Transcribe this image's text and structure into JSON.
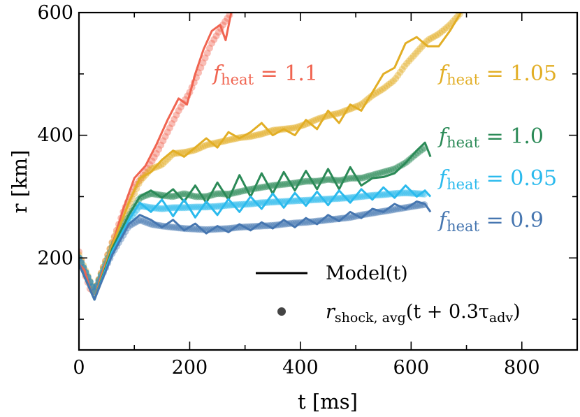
{
  "chart_data": {
    "type": "line",
    "xlabel": "t [ms]",
    "ylabel": "r [km]",
    "xlim": [
      0,
      900
    ],
    "ylim": [
      50,
      600
    ],
    "xticks": [
      0,
      200,
      400,
      600,
      800
    ],
    "yticks": [
      200,
      400,
      600
    ],
    "grid": false,
    "legend_position": "bottom-right",
    "legend": [
      {
        "label": "Model(t)",
        "style": "line"
      },
      {
        "label": "r_shock,avg(t + 0.3τ_adv)",
        "style": "dots"
      }
    ],
    "series": [
      {
        "name": "f_heat = 1.1",
        "color": "#f06450",
        "model": {
          "x": [
            0,
            10,
            20,
            28,
            40,
            60,
            80,
            100,
            120,
            140,
            160,
            180,
            195,
            210,
            225,
            240,
            255,
            265,
            275
          ],
          "y": [
            190,
            180,
            150,
            132,
            170,
            220,
            280,
            330,
            350,
            385,
            425,
            460,
            450,
            500,
            540,
            570,
            580,
            555,
            600
          ]
        },
        "dots": {
          "x": [
            0,
            10,
            20,
            28,
            40,
            60,
            80,
            100,
            120,
            140,
            160,
            180,
            200,
            220,
            240,
            260,
            275
          ],
          "y": [
            210,
            175,
            150,
            145,
            175,
            225,
            275,
            315,
            340,
            370,
            405,
            440,
            470,
            510,
            550,
            580,
            600
          ]
        }
      },
      {
        "name": "f_heat = 1.05",
        "color": "#e2ae25",
        "model": {
          "x": [
            0,
            28,
            60,
            90,
            110,
            130,
            150,
            170,
            190,
            210,
            230,
            250,
            270,
            290,
            310,
            330,
            350,
            370,
            390,
            410,
            430,
            450,
            470,
            490,
            510,
            530,
            550,
            570,
            590,
            610,
            630,
            650,
            670,
            690
          ],
          "y": [
            190,
            132,
            220,
            290,
            330,
            340,
            360,
            375,
            365,
            380,
            395,
            380,
            405,
            395,
            405,
            420,
            400,
            410,
            400,
            425,
            410,
            440,
            420,
            450,
            440,
            470,
            500,
            510,
            550,
            560,
            545,
            545,
            570,
            600
          ]
        },
        "dots": {
          "x": [
            0,
            28,
            60,
            90,
            110,
            130,
            150,
            170,
            190,
            210,
            230,
            250,
            270,
            290,
            310,
            330,
            350,
            370,
            390,
            410,
            430,
            450,
            470,
            490,
            510,
            530,
            550,
            570,
            590,
            610,
            630,
            650,
            670,
            690
          ],
          "y": [
            205,
            145,
            225,
            285,
            325,
            345,
            352,
            370,
            372,
            376,
            384,
            388,
            392,
            396,
            398,
            402,
            408,
            410,
            412,
            418,
            426,
            432,
            436,
            443,
            450,
            465,
            476,
            490,
            515,
            535,
            555,
            565,
            580,
            600
          ]
        }
      },
      {
        "name": "f_heat = 1.0",
        "color": "#2b8a57",
        "model": {
          "x": [
            0,
            28,
            60,
            90,
            110,
            130,
            150,
            170,
            190,
            210,
            230,
            250,
            270,
            290,
            310,
            330,
            350,
            370,
            390,
            410,
            430,
            450,
            470,
            490,
            510,
            530,
            550,
            570,
            590,
            610,
            625,
            635
          ],
          "y": [
            190,
            132,
            215,
            270,
            300,
            310,
            298,
            312,
            292,
            318,
            290,
            323,
            295,
            335,
            300,
            338,
            305,
            340,
            310,
            342,
            312,
            345,
            312,
            348,
            318,
            330,
            332,
            338,
            355,
            375,
            388,
            365
          ]
        },
        "dots": {
          "x": [
            0,
            28,
            60,
            90,
            110,
            130,
            150,
            170,
            190,
            210,
            230,
            250,
            270,
            290,
            310,
            330,
            350,
            370,
            390,
            410,
            430,
            450,
            470,
            490,
            510,
            530,
            550,
            570,
            590,
            610,
            625
          ],
          "y": [
            200,
            145,
            218,
            268,
            298,
            305,
            302,
            300,
            305,
            300,
            300,
            305,
            304,
            308,
            312,
            315,
            318,
            320,
            322,
            325,
            325,
            328,
            326,
            330,
            330,
            335,
            340,
            345,
            355,
            370,
            380
          ]
        }
      },
      {
        "name": "f_heat = 0.95",
        "color": "#2bbaed",
        "model": {
          "x": [
            0,
            28,
            60,
            90,
            110,
            130,
            150,
            170,
            190,
            210,
            230,
            250,
            270,
            290,
            310,
            330,
            350,
            370,
            390,
            410,
            430,
            450,
            470,
            490,
            510,
            530,
            550,
            570,
            590,
            610,
            625,
            635
          ],
          "y": [
            190,
            132,
            210,
            262,
            290,
            275,
            295,
            268,
            295,
            266,
            292,
            270,
            296,
            275,
            300,
            280,
            305,
            282,
            306,
            285,
            308,
            286,
            310,
            290,
            312,
            295,
            315,
            298,
            318,
            300,
            310,
            300
          ]
        },
        "dots": {
          "x": [
            0,
            28,
            60,
            90,
            110,
            130,
            150,
            170,
            190,
            210,
            230,
            250,
            270,
            290,
            310,
            330,
            350,
            370,
            390,
            410,
            430,
            450,
            470,
            490,
            510,
            530,
            550,
            570,
            590,
            610,
            625
          ],
          "y": [
            200,
            145,
            212,
            262,
            285,
            282,
            280,
            282,
            282,
            283,
            283,
            284,
            286,
            287,
            288,
            290,
            291,
            292,
            293,
            294,
            295,
            296,
            297,
            298,
            300,
            302,
            303,
            305,
            306,
            305,
            304
          ]
        }
      },
      {
        "name": "f_heat = 0.9",
        "color": "#4676b0",
        "model": {
          "x": [
            0,
            28,
            60,
            90,
            110,
            130,
            150,
            170,
            190,
            210,
            230,
            250,
            270,
            290,
            310,
            330,
            350,
            370,
            390,
            410,
            430,
            450,
            470,
            490,
            510,
            530,
            550,
            570,
            590,
            610,
            625,
            635
          ],
          "y": [
            190,
            132,
            205,
            255,
            270,
            262,
            250,
            262,
            245,
            256,
            240,
            252,
            242,
            255,
            245,
            258,
            248,
            262,
            250,
            265,
            255,
            270,
            260,
            275,
            265,
            280,
            275,
            288,
            280,
            292,
            288,
            275
          ]
        },
        "dots": {
          "x": [
            0,
            28,
            60,
            90,
            110,
            130,
            150,
            170,
            190,
            210,
            230,
            250,
            270,
            290,
            310,
            330,
            350,
            370,
            390,
            410,
            430,
            450,
            470,
            490,
            510,
            530,
            550,
            570,
            590,
            610,
            625
          ],
          "y": [
            200,
            145,
            207,
            252,
            262,
            255,
            252,
            250,
            248,
            247,
            246,
            247,
            248,
            250,
            251,
            252,
            253,
            255,
            257,
            258,
            260,
            262,
            264,
            266,
            270,
            273,
            276,
            279,
            282,
            285,
            287
          ]
        }
      }
    ]
  },
  "labels": [
    {
      "main": "f",
      "sub": "heat",
      "value": " = 1.1",
      "color": "#f06450"
    },
    {
      "main": "f",
      "sub": "heat",
      "value": " = 1.05",
      "color": "#e2ae25"
    },
    {
      "main": "f",
      "sub": "heat",
      "value": " = 1.0",
      "color": "#2b8a57"
    },
    {
      "main": "f",
      "sub": "heat",
      "value": " = 0.95",
      "color": "#2bbaed"
    },
    {
      "main": "f",
      "sub": "heat",
      "value": " = 0.9",
      "color": "#4676b0"
    }
  ],
  "legend_text": {
    "model": "Model(t)",
    "shock_main": "r",
    "shock_sub": "shock, avg",
    "shock_rest": "(t + 0.3τ",
    "shock_tau_sub": "adv",
    "shock_close": ")"
  }
}
